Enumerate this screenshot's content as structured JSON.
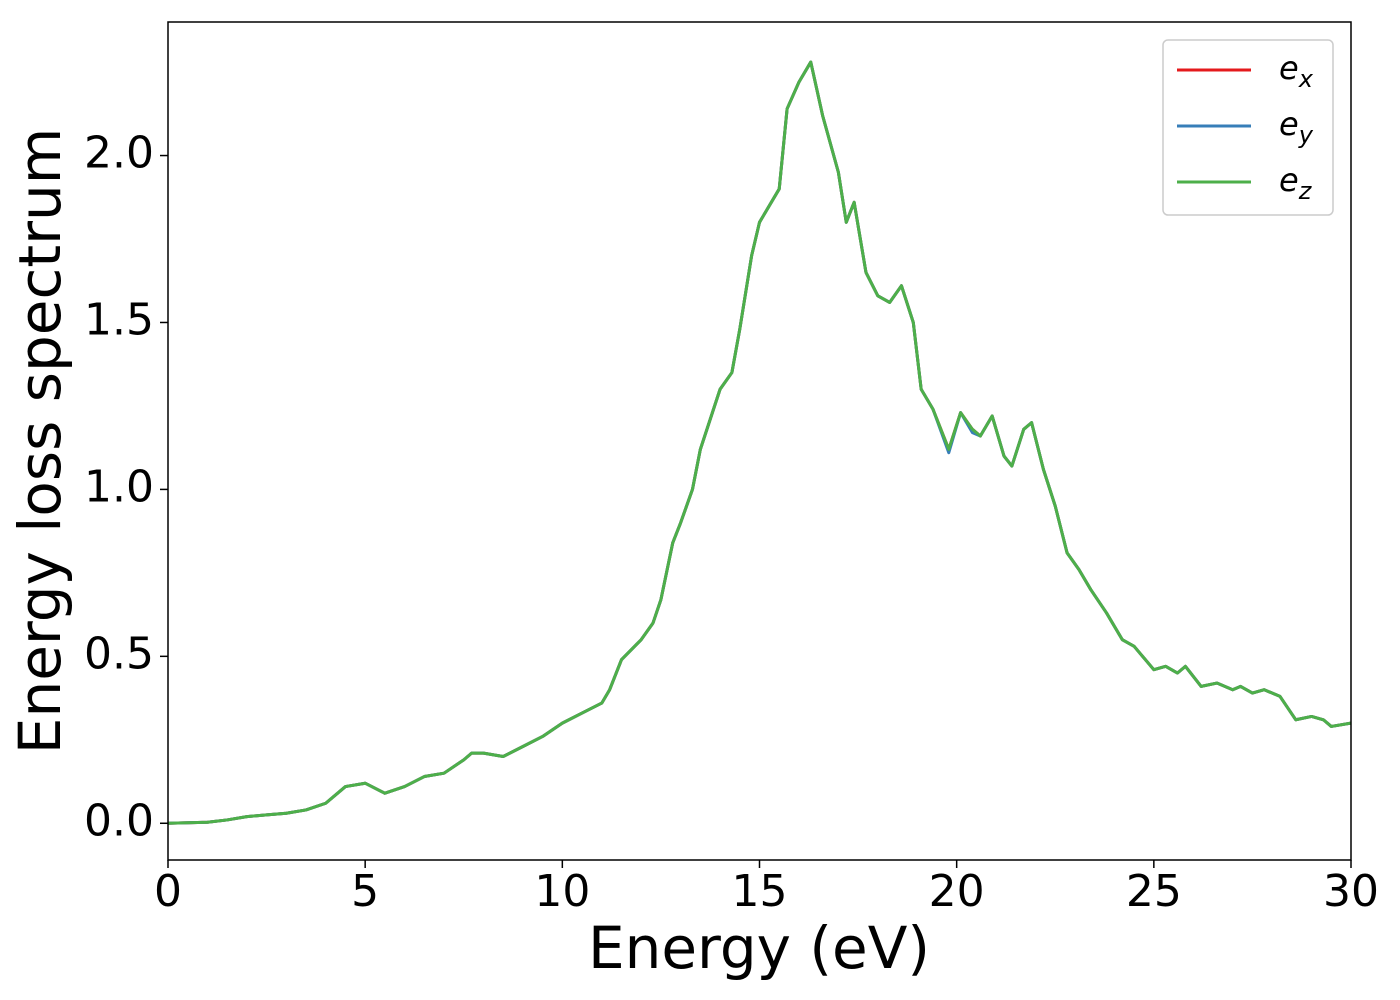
{
  "chart_data": {
    "type": "line",
    "xlabel": "Energy (eV)",
    "ylabel": "Energy loss spectrum",
    "x": [
      0,
      1,
      1.5,
      2,
      2.5,
      3,
      3.5,
      4,
      4.5,
      5,
      5.5,
      6,
      6.5,
      7,
      7.5,
      7.7,
      8,
      8.5,
      9,
      9.5,
      10,
      10.5,
      11,
      11.2,
      11.5,
      12,
      12.3,
      12.5,
      12.8,
      13,
      13.3,
      13.5,
      14,
      14.3,
      14.5,
      14.8,
      15,
      15.5,
      15.7,
      16,
      16.3,
      16.6,
      17,
      17.2,
      17.4,
      17.7,
      18,
      18.3,
      18.6,
      18.9,
      19.1,
      19.4,
      19.8,
      20.1,
      20.4,
      20.6,
      20.9,
      21.2,
      21.4,
      21.7,
      21.9,
      22.2,
      22.5,
      22.8,
      23.1,
      23.4,
      23.8,
      24.2,
      24.5,
      25,
      25.3,
      25.6,
      25.8,
      26.2,
      26.6,
      27,
      27.2,
      27.5,
      27.8,
      28.2,
      28.6,
      29,
      29.3,
      29.5,
      30
    ],
    "series": [
      {
        "name": "e_x",
        "color": "#e41a1c",
        "values": [
          0,
          0.003,
          0.01,
          0.02,
          0.025,
          0.03,
          0.04,
          0.06,
          0.11,
          0.12,
          0.09,
          0.11,
          0.14,
          0.15,
          0.19,
          0.21,
          0.21,
          0.2,
          0.23,
          0.26,
          0.3,
          0.33,
          0.36,
          0.4,
          0.49,
          0.55,
          0.6,
          0.67,
          0.84,
          0.9,
          1.0,
          1.12,
          1.3,
          1.35,
          1.48,
          1.7,
          1.8,
          1.9,
          2.14,
          2.22,
          2.28,
          2.12,
          1.95,
          1.8,
          1.86,
          1.65,
          1.58,
          1.56,
          1.61,
          1.5,
          1.3,
          1.24,
          1.12,
          1.23,
          1.18,
          1.16,
          1.22,
          1.1,
          1.07,
          1.18,
          1.2,
          1.06,
          0.95,
          0.81,
          0.76,
          0.7,
          0.63,
          0.55,
          0.53,
          0.46,
          0.47,
          0.45,
          0.47,
          0.41,
          0.42,
          0.4,
          0.41,
          0.39,
          0.4,
          0.38,
          0.31,
          0.32,
          0.31,
          0.29,
          0.3
        ]
      },
      {
        "name": "e_y",
        "color": "#377eb8",
        "values": [
          0,
          0.003,
          0.01,
          0.02,
          0.025,
          0.03,
          0.04,
          0.06,
          0.11,
          0.12,
          0.09,
          0.11,
          0.14,
          0.15,
          0.19,
          0.21,
          0.21,
          0.2,
          0.23,
          0.26,
          0.3,
          0.33,
          0.36,
          0.4,
          0.49,
          0.55,
          0.6,
          0.67,
          0.84,
          0.9,
          1.0,
          1.12,
          1.3,
          1.35,
          1.48,
          1.7,
          1.8,
          1.9,
          2.14,
          2.22,
          2.28,
          2.12,
          1.95,
          1.8,
          1.86,
          1.65,
          1.58,
          1.56,
          1.61,
          1.5,
          1.3,
          1.24,
          1.11,
          1.23,
          1.17,
          1.16,
          1.22,
          1.1,
          1.07,
          1.18,
          1.2,
          1.06,
          0.95,
          0.81,
          0.76,
          0.7,
          0.63,
          0.55,
          0.53,
          0.46,
          0.47,
          0.45,
          0.47,
          0.41,
          0.42,
          0.4,
          0.41,
          0.39,
          0.4,
          0.38,
          0.31,
          0.32,
          0.31,
          0.29,
          0.3
        ]
      },
      {
        "name": "e_z",
        "color": "#4daf4a",
        "values": [
          0,
          0.003,
          0.01,
          0.02,
          0.025,
          0.03,
          0.04,
          0.06,
          0.11,
          0.12,
          0.09,
          0.11,
          0.14,
          0.15,
          0.19,
          0.21,
          0.21,
          0.2,
          0.23,
          0.26,
          0.3,
          0.33,
          0.36,
          0.4,
          0.49,
          0.55,
          0.6,
          0.67,
          0.84,
          0.9,
          1.0,
          1.12,
          1.3,
          1.35,
          1.48,
          1.7,
          1.8,
          1.9,
          2.14,
          2.22,
          2.28,
          2.12,
          1.95,
          1.8,
          1.86,
          1.65,
          1.58,
          1.56,
          1.61,
          1.5,
          1.3,
          1.24,
          1.12,
          1.23,
          1.18,
          1.16,
          1.22,
          1.1,
          1.07,
          1.18,
          1.2,
          1.06,
          0.95,
          0.81,
          0.76,
          0.7,
          0.63,
          0.55,
          0.53,
          0.46,
          0.47,
          0.45,
          0.47,
          0.41,
          0.42,
          0.4,
          0.41,
          0.39,
          0.4,
          0.38,
          0.31,
          0.32,
          0.31,
          0.29,
          0.3
        ]
      }
    ],
    "xlim": [
      0,
      30
    ],
    "xticks": [
      0,
      5,
      10,
      15,
      20,
      25,
      30
    ],
    "ylim": [
      -0.11,
      2.4
    ],
    "yticks": [
      {
        "value": 0,
        "label": "0.0"
      },
      0.5,
      {
        "value": 1,
        "label": "1.0"
      },
      1.5,
      {
        "value": 2,
        "label": "2.0"
      }
    ],
    "grid": false,
    "legend": "upper right"
  }
}
